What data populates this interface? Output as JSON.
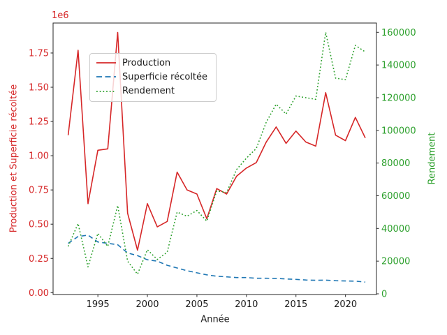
{
  "chart_data": {
    "type": "line",
    "xlabel": "Année",
    "ylabel_left": "Production et Superficie récoltée",
    "ylabel_right": "Rendement",
    "left_axis_offset_text": "1e6",
    "left_axis_color": "#d62728",
    "right_axis_color": "#2ca02c",
    "x_tick_labels": [
      "1995",
      "2000",
      "2005",
      "2010",
      "2015",
      "2020"
    ],
    "left_tick_labels": [
      "0.00",
      "0.25",
      "0.50",
      "0.75",
      "1.00",
      "1.25",
      "1.50",
      "1.75"
    ],
    "right_tick_labels": [
      "0",
      "20000",
      "40000",
      "60000",
      "80000",
      "100000",
      "120000",
      "140000",
      "160000"
    ],
    "left_ylim": [
      0,
      1970000
    ],
    "right_ylim": [
      0,
      167000
    ],
    "x_range": [
      1992,
      2022
    ],
    "grid": false,
    "legend_position": "upper-left-inside",
    "years": [
      1992,
      1993,
      1994,
      1995,
      1996,
      1997,
      1998,
      1999,
      2000,
      2001,
      2002,
      2003,
      2004,
      2005,
      2006,
      2007,
      2008,
      2009,
      2010,
      2011,
      2012,
      2013,
      2014,
      2015,
      2016,
      2017,
      2018,
      2019,
      2020,
      2021,
      2022
    ],
    "series": [
      {
        "name": "Production",
        "axis": "left",
        "color": "#d62728",
        "style": "solid",
        "values": [
          1150000,
          1770000,
          650000,
          1040000,
          1050000,
          1900000,
          580000,
          310000,
          650000,
          480000,
          520000,
          880000,
          750000,
          720000,
          540000,
          760000,
          720000,
          850000,
          910000,
          950000,
          1100000,
          1210000,
          1090000,
          1180000,
          1100000,
          1070000,
          1460000,
          1150000,
          1110000,
          1280000,
          1130000
        ]
      },
      {
        "name": "Superficie récoltée",
        "axis": "left",
        "color": "#1f77b4",
        "style": "dashed",
        "values": [
          360000,
          410000,
          420000,
          370000,
          360000,
          350000,
          290000,
          270000,
          240000,
          230000,
          200000,
          180000,
          160000,
          145000,
          130000,
          120000,
          115000,
          110000,
          110000,
          105000,
          105000,
          104000,
          100000,
          97000,
          92000,
          90000,
          91000,
          87000,
          85000,
          84000,
          77000
        ]
      },
      {
        "name": "Rendement",
        "axis": "right",
        "color": "#2ca02c",
        "style": "dotted",
        "values": [
          29000,
          43000,
          16500,
          37000,
          29000,
          54000,
          20000,
          12000,
          27000,
          21000,
          25500,
          50000,
          47500,
          51000,
          44500,
          63000,
          62000,
          76000,
          83000,
          89000,
          105000,
          116000,
          110000,
          121000,
          120000,
          119000,
          160000,
          132000,
          131000,
          152000,
          148000
        ]
      }
    ]
  }
}
